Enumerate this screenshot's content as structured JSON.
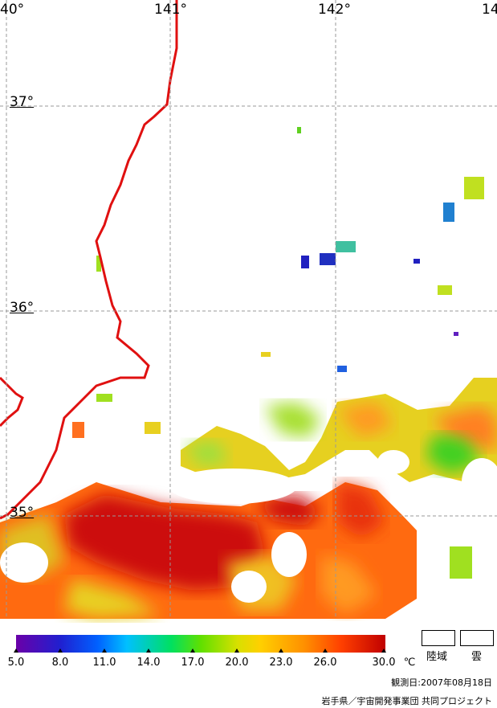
{
  "map": {
    "longitude_labels": [
      "40°",
      "141°",
      "142°",
      "14"
    ],
    "latitude_labels": [
      "37°",
      "36°",
      "35°"
    ],
    "coastline_color": "#e01010",
    "grid_style": "dashed",
    "land_color": "#ffffff"
  },
  "colorbar": {
    "ticks": [
      "5.0",
      "8.0",
      "11.0",
      "14.0",
      "17.0",
      "20.0",
      "23.0",
      "26.0",
      "30.0"
    ],
    "unit": "℃",
    "colors": [
      "#6a00a8",
      "#2020d0",
      "#0060ff",
      "#00c0ff",
      "#00e060",
      "#60e000",
      "#d8e000",
      "#ffd000",
      "#ff9000",
      "#ff4000",
      "#c00000"
    ]
  },
  "legend": {
    "land": "陸域",
    "cloud": "雲"
  },
  "footer": {
    "date": "観測日:2007年08月18日",
    "credit": "岩手県／宇宙開発事業団 共同プロジェクト"
  }
}
